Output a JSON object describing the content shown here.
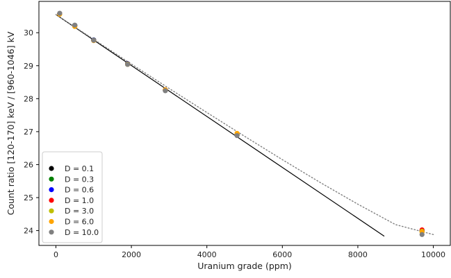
{
  "chart_data": {
    "type": "scatter",
    "xlabel": "Uranium grade (ppm)",
    "ylabel": "Count ratio [120-170] keV / [960-1046] kV",
    "xlim": [
      -450,
      10450
    ],
    "ylim": [
      23.55,
      30.95
    ],
    "xticks": [
      0,
      2000,
      4000,
      6000,
      8000,
      10000
    ],
    "yticks": [
      24,
      25,
      26,
      27,
      28,
      29,
      30
    ],
    "grid": false,
    "legend_position": "lower-left",
    "x": [
      100,
      500,
      1000,
      1900,
      2900,
      4800,
      9700
    ],
    "series": [
      {
        "name": "D = 0.1",
        "color": "#000000",
        "values": [
          30.58,
          30.22,
          29.78,
          29.06,
          28.26,
          26.9,
          24.0
        ]
      },
      {
        "name": "D = 0.3",
        "color": "#008000",
        "values": [
          30.58,
          30.22,
          29.78,
          29.06,
          28.26,
          26.9,
          23.98
        ]
      },
      {
        "name": "D = 0.6",
        "color": "#0000ff",
        "values": [
          30.58,
          30.22,
          29.78,
          29.06,
          28.26,
          26.9,
          24.0
        ]
      },
      {
        "name": "D = 1.0",
        "color": "#ff0000",
        "values": [
          30.58,
          30.2,
          29.77,
          29.05,
          28.27,
          26.93,
          24.02
        ]
      },
      {
        "name": "D = 3.0",
        "color": "#bfbf00",
        "values": [
          30.57,
          30.2,
          29.77,
          29.05,
          28.26,
          26.93,
          23.98
        ]
      },
      {
        "name": "D = 6.0",
        "color": "#ffa500",
        "values": [
          30.56,
          30.19,
          29.76,
          29.04,
          28.27,
          26.95,
          23.96
        ]
      },
      {
        "name": "D = 10.0",
        "color": "#808080",
        "values": [
          30.59,
          30.23,
          29.77,
          29.04,
          28.24,
          26.88,
          23.88
        ]
      }
    ],
    "fits": [
      {
        "style": "solid",
        "color": "#000000",
        "x": [
          0,
          8700
        ],
        "y": [
          30.55,
          23.83
        ]
      },
      {
        "style": "dotted",
        "color": "#808080",
        "x": [
          0,
          1000,
          2000,
          3000,
          4000,
          5000,
          6000,
          7000,
          8000,
          9000,
          10000
        ],
        "y": [
          30.55,
          29.8,
          29.05,
          28.31,
          27.58,
          26.86,
          26.15,
          25.46,
          24.8,
          24.18,
          23.88
        ]
      }
    ]
  }
}
